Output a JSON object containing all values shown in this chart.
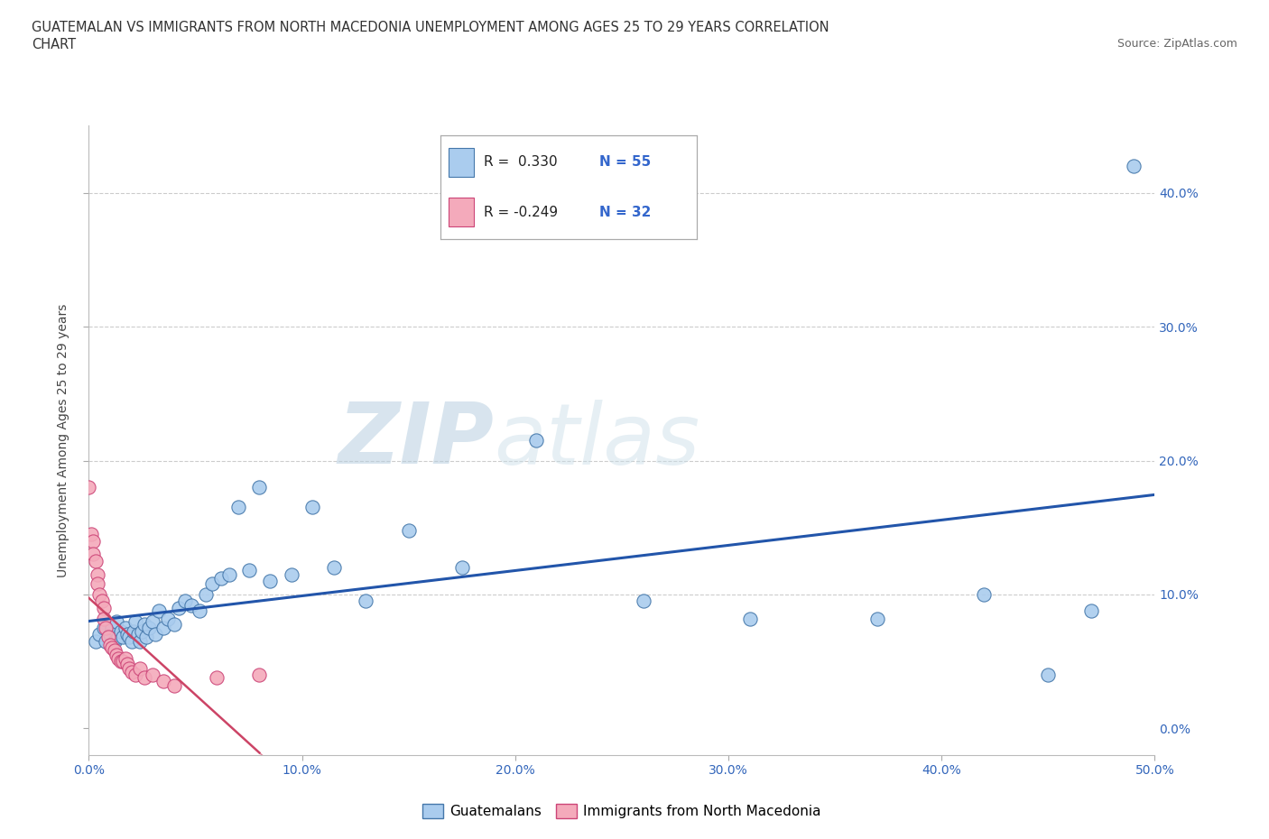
{
  "title_line1": "GUATEMALAN VS IMMIGRANTS FROM NORTH MACEDONIA UNEMPLOYMENT AMONG AGES 25 TO 29 YEARS CORRELATION",
  "title_line2": "CHART",
  "source": "Source: ZipAtlas.com",
  "xlim": [
    0.0,
    0.5
  ],
  "ylim": [
    -0.02,
    0.45
  ],
  "ytick_positions": [
    0.0,
    0.1,
    0.2,
    0.3,
    0.4
  ],
  "xtick_positions": [
    0.0,
    0.1,
    0.2,
    0.3,
    0.4,
    0.5
  ],
  "guatemalan_color": "#aaccee",
  "macedonian_color": "#f4aabb",
  "guatemalan_edge": "#4477aa",
  "macedonian_edge": "#cc4477",
  "trend_blue": "#2255aa",
  "trend_pink": "#cc4466",
  "watermark_zip": "ZIP",
  "watermark_atlas": "atlas",
  "guatemalan_x": [
    0.003,
    0.005,
    0.007,
    0.008,
    0.01,
    0.011,
    0.012,
    0.013,
    0.014,
    0.015,
    0.016,
    0.017,
    0.018,
    0.019,
    0.02,
    0.021,
    0.022,
    0.023,
    0.024,
    0.025,
    0.026,
    0.027,
    0.028,
    0.03,
    0.031,
    0.033,
    0.035,
    0.037,
    0.04,
    0.042,
    0.045,
    0.048,
    0.052,
    0.055,
    0.058,
    0.062,
    0.066,
    0.07,
    0.075,
    0.08,
    0.085,
    0.095,
    0.105,
    0.115,
    0.13,
    0.15,
    0.175,
    0.21,
    0.26,
    0.31,
    0.37,
    0.42,
    0.45,
    0.47,
    0.49
  ],
  "guatemalan_y": [
    0.065,
    0.07,
    0.075,
    0.065,
    0.07,
    0.075,
    0.065,
    0.08,
    0.068,
    0.072,
    0.068,
    0.075,
    0.07,
    0.068,
    0.065,
    0.072,
    0.08,
    0.07,
    0.065,
    0.072,
    0.078,
    0.068,
    0.075,
    0.08,
    0.07,
    0.088,
    0.075,
    0.082,
    0.078,
    0.09,
    0.095,
    0.092,
    0.088,
    0.1,
    0.108,
    0.112,
    0.115,
    0.165,
    0.118,
    0.18,
    0.11,
    0.115,
    0.165,
    0.12,
    0.095,
    0.148,
    0.12,
    0.215,
    0.095,
    0.082,
    0.082,
    0.1,
    0.04,
    0.088,
    0.42
  ],
  "macedonian_x": [
    0.0,
    0.001,
    0.002,
    0.002,
    0.003,
    0.004,
    0.004,
    0.005,
    0.006,
    0.007,
    0.007,
    0.008,
    0.009,
    0.01,
    0.011,
    0.012,
    0.013,
    0.014,
    0.015,
    0.016,
    0.017,
    0.018,
    0.019,
    0.02,
    0.022,
    0.024,
    0.026,
    0.03,
    0.035,
    0.04,
    0.06,
    0.08
  ],
  "macedonian_y": [
    0.18,
    0.145,
    0.14,
    0.13,
    0.125,
    0.115,
    0.108,
    0.1,
    0.095,
    0.09,
    0.082,
    0.075,
    0.068,
    0.062,
    0.06,
    0.058,
    0.055,
    0.052,
    0.05,
    0.05,
    0.052,
    0.048,
    0.045,
    0.042,
    0.04,
    0.045,
    0.038,
    0.04,
    0.035,
    0.032,
    0.038,
    0.04
  ]
}
